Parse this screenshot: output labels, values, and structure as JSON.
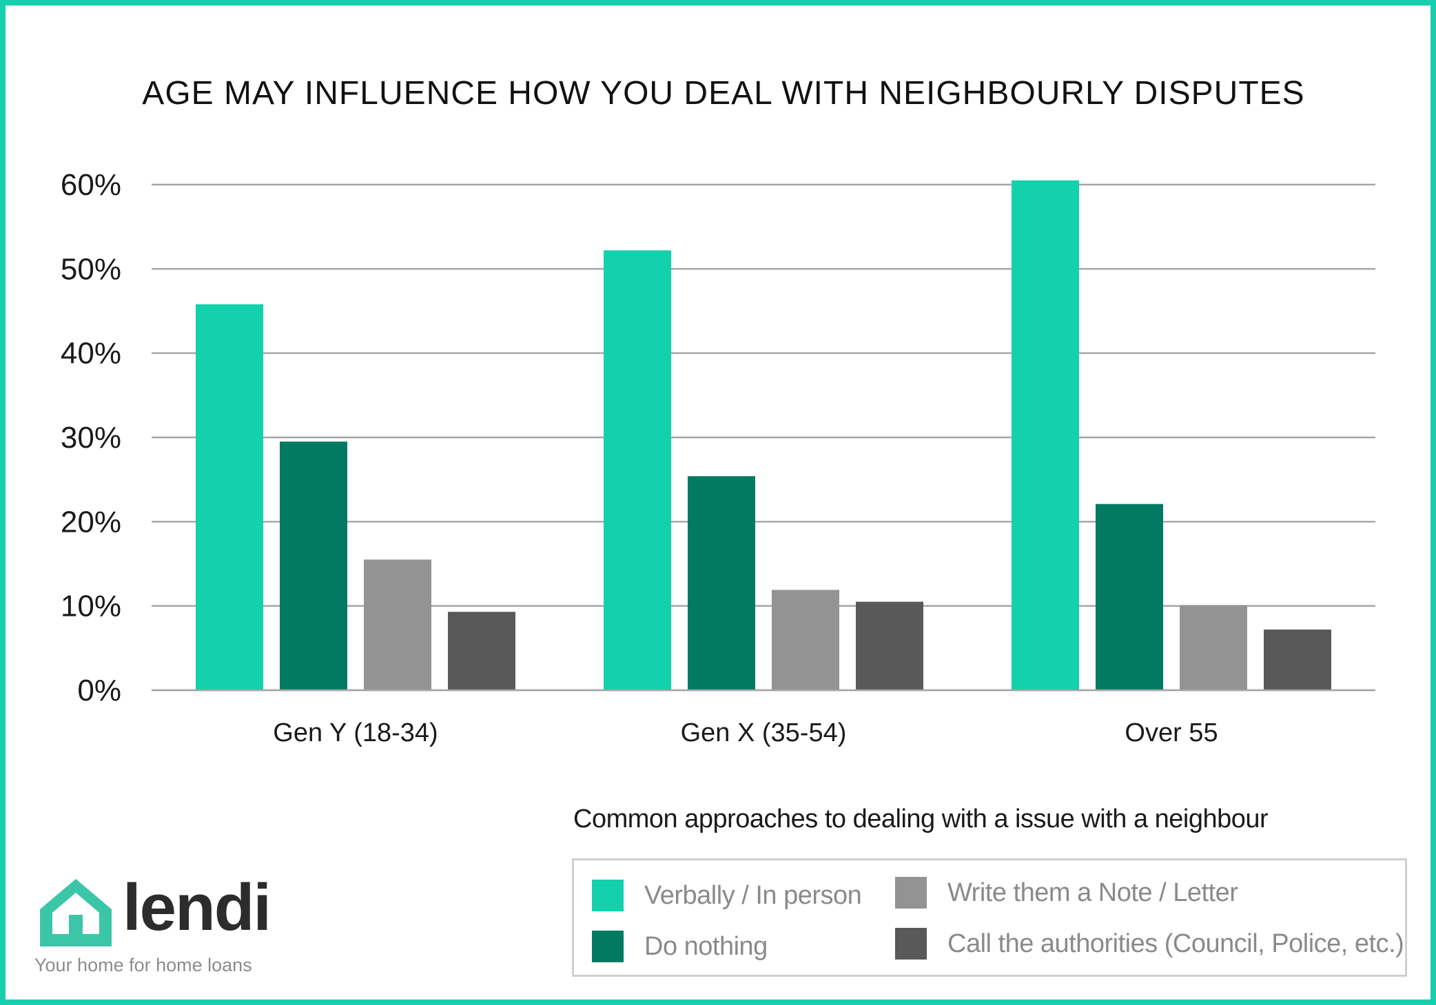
{
  "chart_data": {
    "type": "bar",
    "title": "AGE MAY INFLUENCE HOW YOU DEAL WITH NEIGHBOURLY DISPUTES",
    "categories": [
      "Gen Y (18-34)",
      "Gen X (35-54)",
      "Over 55"
    ],
    "series": [
      {
        "name": "Verbally / In person",
        "color": "#13d1ac",
        "values": [
          45.8,
          52.2,
          60.5
        ]
      },
      {
        "name": "Do nothing",
        "color": "#017a61",
        "values": [
          29.5,
          25.4,
          22.1
        ]
      },
      {
        "name": "Write them a Note / Letter",
        "color": "#939393",
        "values": [
          15.5,
          11.9,
          10.1
        ]
      },
      {
        "name": "Call the authorities (Council, Police, etc.)",
        "color": "#595959",
        "values": [
          9.3,
          10.5,
          7.2
        ]
      }
    ],
    "ylim": [
      0,
      60
    ],
    "yticks": [
      0,
      10,
      20,
      30,
      40,
      50,
      60
    ],
    "ytick_labels": [
      "0%",
      "10%",
      "20%",
      "30%",
      "40%",
      "50%",
      "60%"
    ],
    "grid": true,
    "xlabel": "",
    "ylabel": "",
    "legend_title": "Common approaches to dealing with a issue with a neighbour",
    "legend_position": "bottom-right"
  },
  "logo": {
    "name": "lendi",
    "tagline": "Your home for home loans",
    "color": "#3cc6a8"
  }
}
